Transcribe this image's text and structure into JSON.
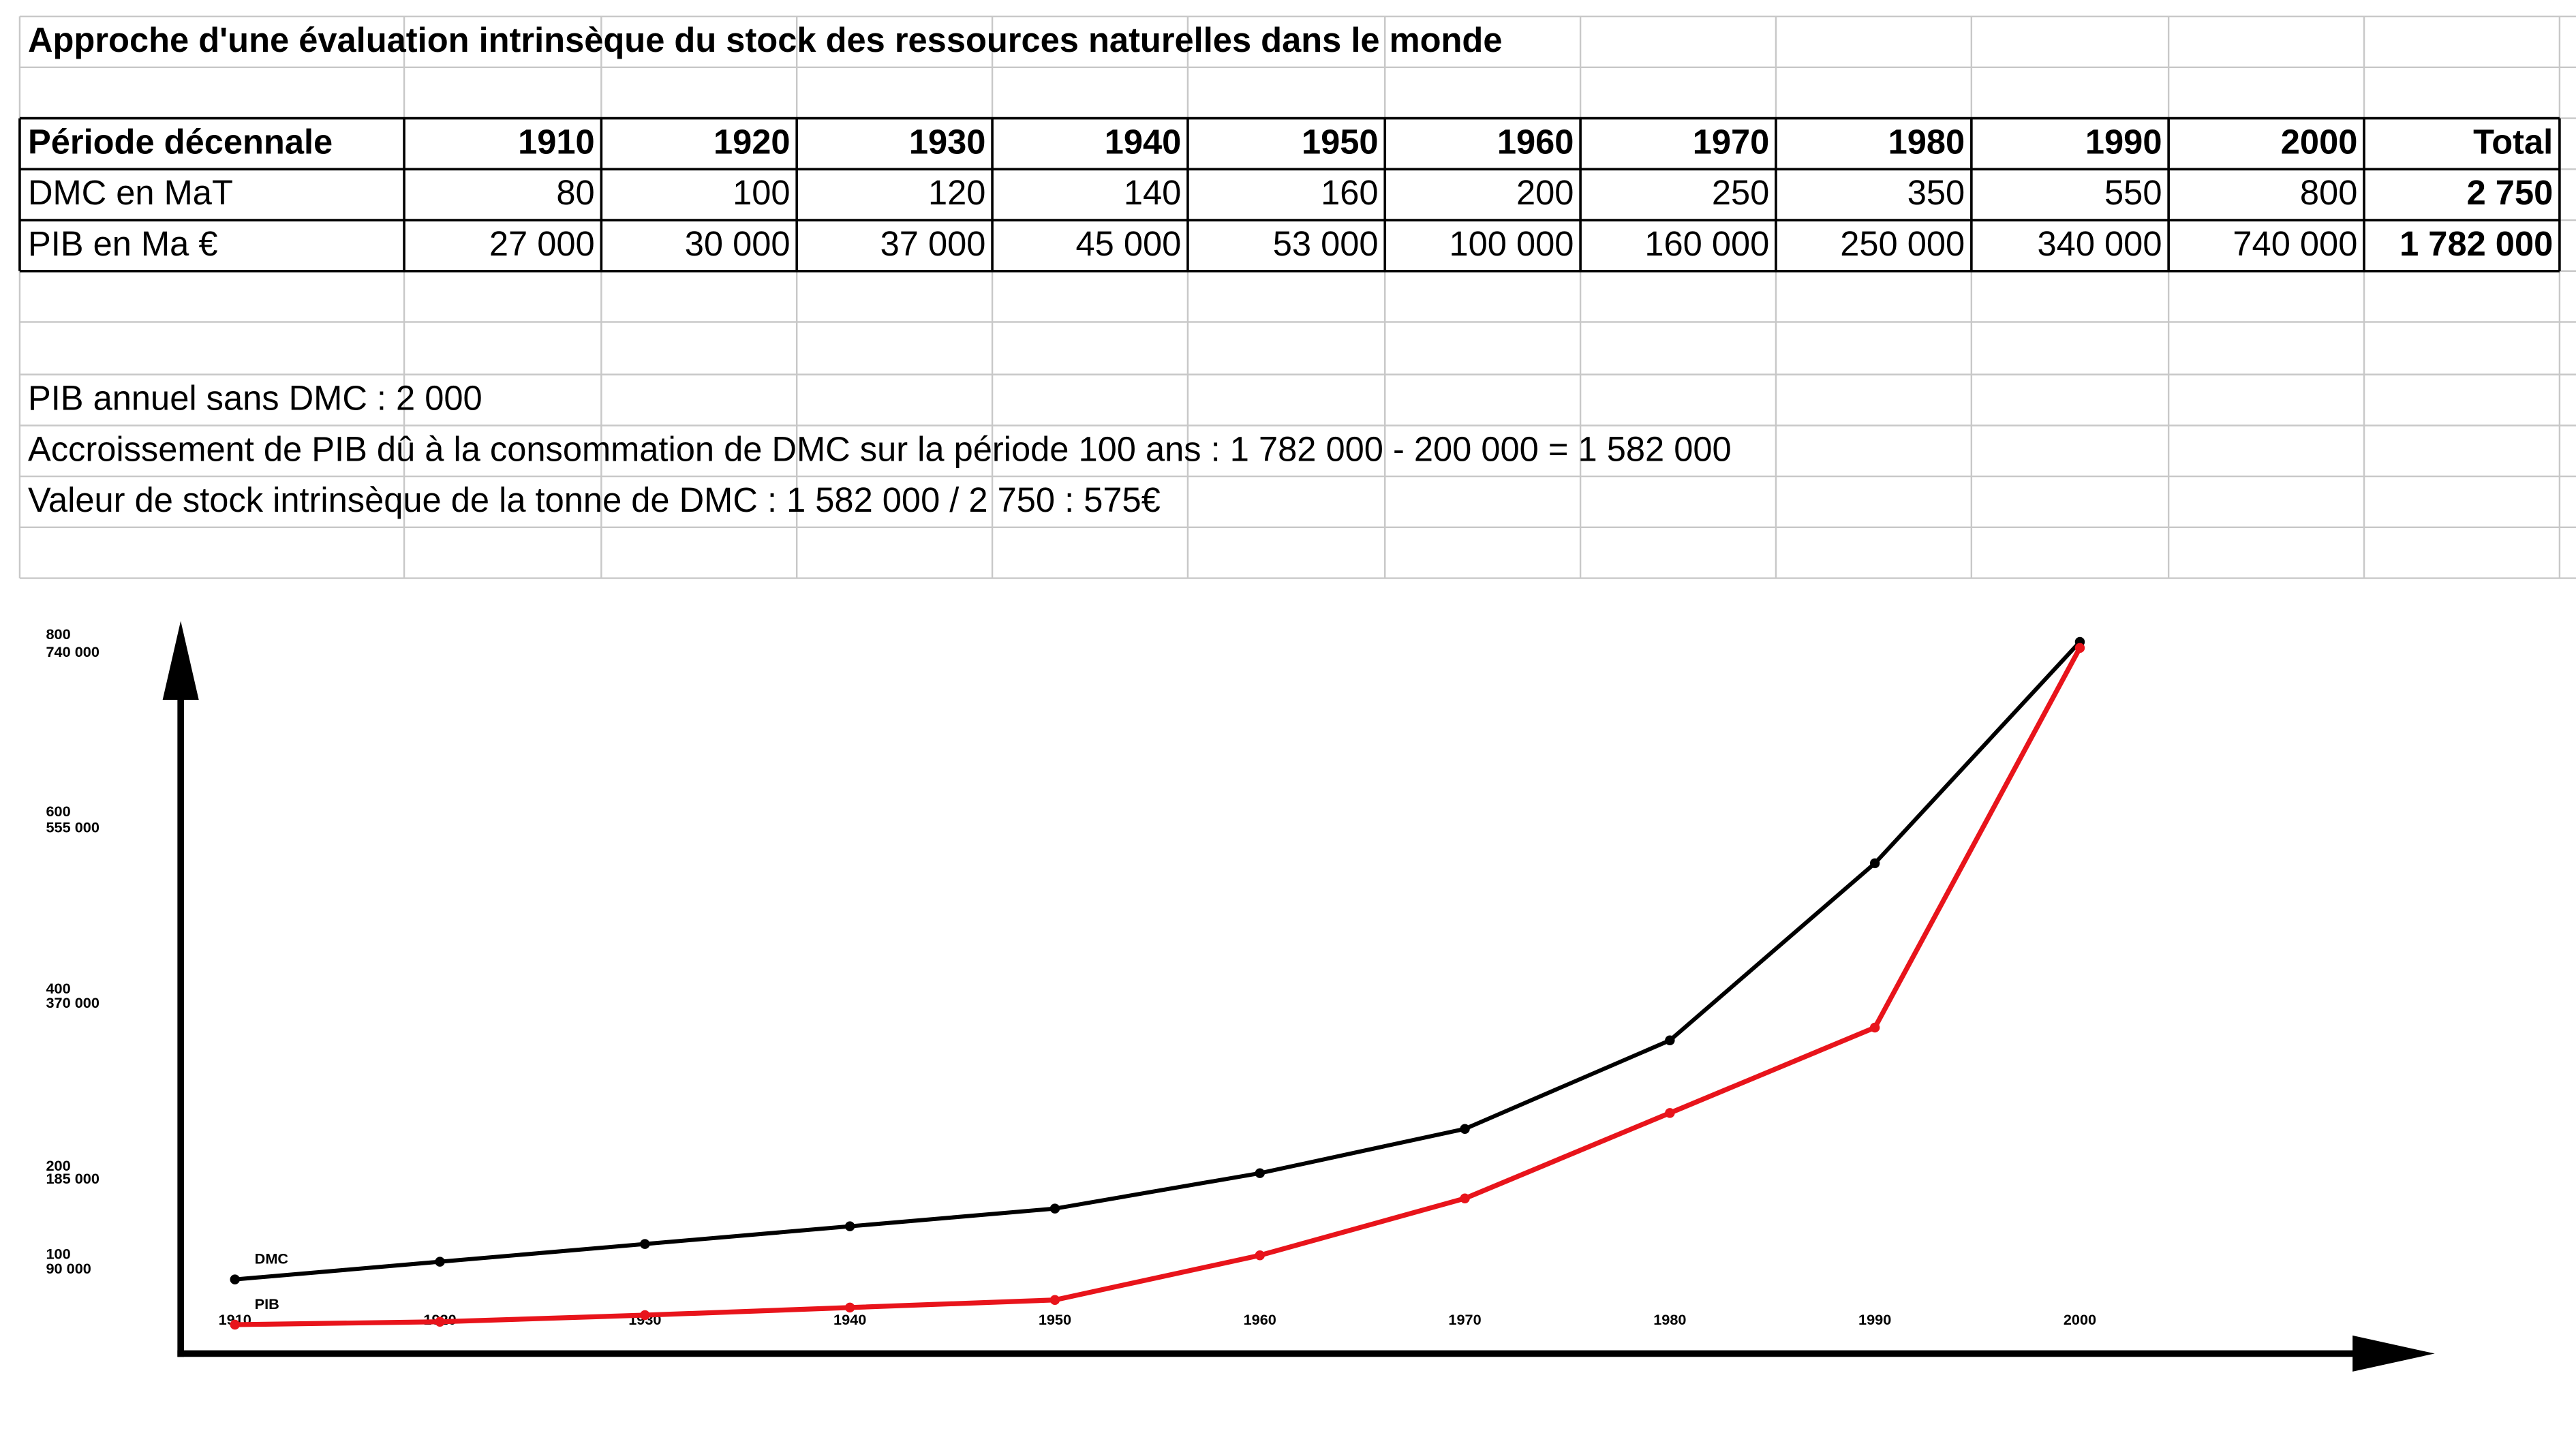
{
  "table": {
    "title": "Approche d'une évaluation intrinsèque du stock des ressources naturelles dans le monde",
    "header": [
      "Période décennale",
      "1910",
      "1920",
      "1930",
      "1940",
      "1950",
      "1960",
      "1970",
      "1980",
      "1990",
      "2000",
      "Total"
    ],
    "rows": [
      [
        "DMC en MaT",
        "80",
        "100",
        "120",
        "140",
        "160",
        "200",
        "250",
        "350",
        "550",
        "800",
        "2 750"
      ],
      [
        "PIB en Ma €",
        "27 000",
        "30 000",
        "37 000",
        "45 000",
        "53 000",
        "100 000",
        "160 000",
        "250 000",
        "340 000",
        "740 000",
        "1 782 000"
      ]
    ],
    "notes": [
      "PIB annuel  sans DMC : 2 000",
      "Accroissement de PIB dû à la consommation de DMC sur la période 100 ans : 1 782 000 - 200 000 = 1 582 000",
      "Valeur de stock intrinsèque de  la tonne de DMC : 1 582 000 / 2 750 : 575€"
    ]
  },
  "chart_data": {
    "type": "line",
    "categories": [
      "1910",
      "1920",
      "1930",
      "1940",
      "1950",
      "1960",
      "1970",
      "1980",
      "1990",
      "2000"
    ],
    "series": [
      {
        "name": "DMC",
        "color": "#000000",
        "values": [
          80,
          100,
          120,
          140,
          160,
          200,
          250,
          350,
          550,
          800
        ]
      },
      {
        "name": "PIB",
        "color": "#e8141b",
        "axis": "y2",
        "values": [
          27000,
          30000,
          37000,
          45000,
          53000,
          100000,
          160000,
          250000,
          340000,
          740000
        ]
      }
    ],
    "ylim": [
      0,
      820
    ],
    "yticks": [
      100,
      200,
      400,
      600,
      800
    ],
    "y2lim": [
      0,
      765000
    ],
    "y2ticks": [
      {
        "value": 90000,
        "label": "90 000"
      },
      {
        "value": 185000,
        "label": "185 000"
      },
      {
        "value": 370000,
        "label": "370 000"
      },
      {
        "value": 555000,
        "label": "555 000"
      },
      {
        "value": 740000,
        "label": "740 000"
      }
    ]
  }
}
